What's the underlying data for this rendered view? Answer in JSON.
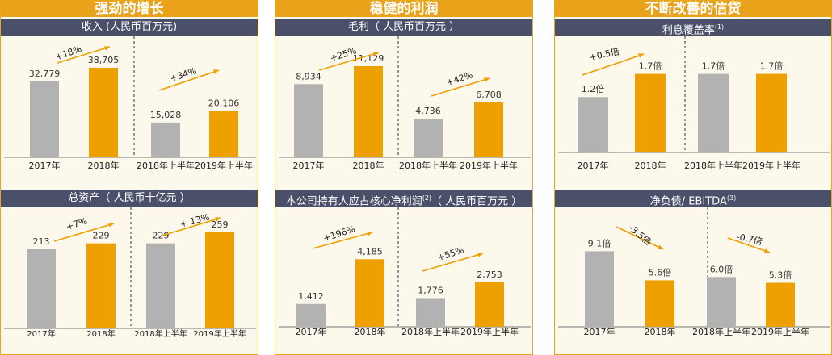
{
  "colors": {
    "accent": "#e9a21a",
    "header_bar": "#4a5069",
    "bar_gray": "#b2b2b2",
    "bar_gold": "#eea000",
    "panel_bg": "#fdf8ec",
    "arrow": "#eea000"
  },
  "columns": [
    {
      "title": "强劲的增长"
    },
    {
      "title": "稳健的利润"
    },
    {
      "title": "不断改善的信贷"
    }
  ],
  "chart_data": [
    {
      "type": "bar",
      "title": "收入 (人民币百万元)",
      "title_sup": "",
      "categories": [
        "2017年",
        "2018年",
        "2018年上半年",
        "2019年上半年"
      ],
      "values": [
        32779,
        38705,
        15028,
        20106
      ],
      "labels": [
        "32,779",
        "38,705",
        "15,028",
        "20,106"
      ],
      "ylim": [
        0,
        46000
      ],
      "annotations": [
        "+18%",
        "+34%"
      ]
    },
    {
      "type": "bar",
      "title": "总资产（ 人民币十亿元 ）",
      "title_sup": "",
      "categories": [
        "2017年",
        "2018年",
        "2018年上半年",
        "2019年上半年"
      ],
      "values": [
        213,
        229,
        229,
        259
      ],
      "labels": [
        "213",
        "229",
        "229",
        "259"
      ],
      "ylim": [
        0,
        300
      ],
      "annotations": [
        "+7%",
        "+ 13%"
      ]
    },
    {
      "type": "bar",
      "title": "毛利（ 人民币百万元 ）",
      "title_sup": "",
      "categories": [
        "2017年",
        "2018年",
        "2018年上半年",
        "2019年上半年"
      ],
      "values": [
        8934,
        11129,
        4736,
        6708
      ],
      "labels": [
        "8,934",
        "11,129",
        "4,736",
        "6,708"
      ],
      "ylim": [
        0,
        13000
      ],
      "annotations": [
        "+25%",
        "+42%"
      ]
    },
    {
      "type": "bar",
      "title": "本公司持有人应占核心净利润",
      "title_sup": "(2)",
      "title_suffix": "（ 人民币百万元 ）",
      "categories": [
        "2017年",
        "2018年",
        "2018年上半年",
        "2019年上半年"
      ],
      "values": [
        1412,
        4185,
        1776,
        2753
      ],
      "labels": [
        "1,412",
        "4,185",
        "1,776",
        "2,753"
      ],
      "ylim": [
        0,
        5500
      ],
      "annotations": [
        "+196%",
        "+55%"
      ]
    },
    {
      "type": "bar",
      "title": "利息覆盖率",
      "title_sup": "(1)",
      "categories": [
        "2017年",
        "2018年",
        "2018年上半年",
        "2019年上半年"
      ],
      "values": [
        1.2,
        1.7,
        1.7,
        1.7
      ],
      "labels": [
        "1.2倍",
        "1.7倍",
        "1.7倍",
        "1.7倍"
      ],
      "ylim": [
        0,
        1.85
      ],
      "annotations": [
        "+0.5倍"
      ]
    },
    {
      "type": "bar",
      "title": "净负债/ EBITDA",
      "title_sup": "(3)",
      "categories": [
        "2017年",
        "2018年",
        "2018年上半年",
        "2019年上半年"
      ],
      "values": [
        9.1,
        5.6,
        6.0,
        5.3
      ],
      "labels": [
        "9.1倍",
        "5.6倍",
        "6.0倍",
        "5.3倍"
      ],
      "ylim": [
        0,
        10.5
      ],
      "annotations": [
        "-3.5倍",
        "-0.7倍"
      ]
    }
  ]
}
